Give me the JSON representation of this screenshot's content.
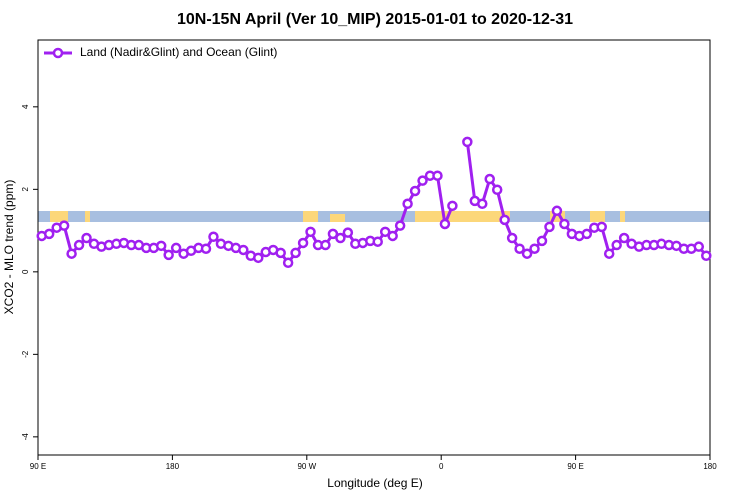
{
  "chart_data": {
    "type": "line",
    "title": "10N-15N April (Ver 10_MIP)   2015-01-01 to 2020-12-31",
    "xlabel": "Longitude (deg E)",
    "ylabel": "XCO2 - MLO trend (ppm)",
    "x": [
      92.5,
      97.5,
      102.5,
      107.5,
      112.5,
      117.5,
      122.5,
      127.5,
      132.5,
      137.5,
      142.5,
      147.5,
      152.5,
      157.5,
      162.5,
      167.5,
      172.5,
      177.5,
      182.5,
      187.5,
      192.5,
      197.5,
      202.5,
      207.5,
      212.5,
      217.5,
      222.5,
      227.5,
      232.5,
      237.5,
      242.5,
      247.5,
      252.5,
      257.5,
      262.5,
      267.5,
      272.5,
      277.5,
      282.5,
      287.5,
      292.5,
      297.5,
      302.5,
      307.5,
      312.5,
      317.5,
      322.5,
      327.5,
      332.5,
      337.5,
      342.5,
      347.5,
      352.5,
      357.5,
      362.5,
      367.5,
      372.5,
      377.5,
      382.5,
      387.5,
      392.5,
      397.5,
      402.5,
      407.5,
      412.5,
      417.5,
      422.5,
      427.5,
      432.5,
      437.5,
      442.5,
      447.5,
      452.5,
      457.5,
      462.5,
      467.5,
      472.5,
      477.5,
      482.5,
      487.5,
      492.5,
      497.5,
      502.5,
      507.5,
      512.5,
      517.5,
      522.5,
      527.5,
      532.5,
      537.5
    ],
    "series": [
      {
        "name": "Land (Nadir&Glint) and Ocean (Glint)",
        "color": "#a020f0",
        "values": [
          0.87,
          0.92,
          1.07,
          1.12,
          0.44,
          0.65,
          0.82,
          0.68,
          0.61,
          0.65,
          0.68,
          0.7,
          0.65,
          0.65,
          0.58,
          0.58,
          0.63,
          0.41,
          0.58,
          0.44,
          0.51,
          0.58,
          0.56,
          0.85,
          0.68,
          0.63,
          0.58,
          0.53,
          0.39,
          0.34,
          0.48,
          0.53,
          0.46,
          0.22,
          0.46,
          0.7,
          0.97,
          0.65,
          0.65,
          0.92,
          0.82,
          0.95,
          0.68,
          0.7,
          0.75,
          0.73,
          0.97,
          0.87,
          1.12,
          1.65,
          1.96,
          2.21,
          2.33,
          2.33,
          1.16,
          1.6,
          null,
          3.15,
          1.72,
          1.65,
          2.25,
          1.99,
          1.26,
          0.82,
          0.56,
          0.44,
          0.56,
          0.75,
          1.09,
          1.48,
          1.16,
          0.92,
          0.87,
          0.92,
          1.07,
          1.09,
          0.44,
          0.65,
          0.82,
          0.68,
          0.61,
          0.65,
          0.65,
          0.68,
          0.65,
          0.63,
          0.56,
          0.56,
          0.61,
          0.39
        ]
      }
    ],
    "xlim": [
      90,
      540
    ],
    "xticks": [
      {
        "value": 90,
        "label": "90 E"
      },
      180,
      {
        "value": 270,
        "label": "90 W"
      },
      {
        "value": 360,
        "label": "0"
      },
      {
        "value": 450,
        "label": "90 E"
      },
      {
        "value": 540,
        "label": "180"
      }
    ],
    "ylim": [
      -4.44,
      5.62
    ],
    "yticks": [
      -4,
      -2,
      0,
      2,
      4
    ],
    "legend": "top-left"
  }
}
